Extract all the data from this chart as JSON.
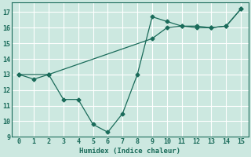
{
  "xlabel": "Humidex (Indice chaleur)",
  "background_color": "#cce8e0",
  "line_color": "#1a6b5a",
  "series1_x": [
    0,
    1,
    2,
    3,
    4,
    5,
    6,
    7,
    8,
    9,
    10,
    11,
    12,
    13,
    14,
    15
  ],
  "series1_y": [
    13.0,
    12.7,
    13.0,
    11.4,
    11.4,
    9.8,
    9.3,
    10.5,
    13.0,
    16.7,
    16.4,
    16.1,
    16.0,
    16.0,
    16.1,
    17.2
  ],
  "series2_x": [
    0,
    2,
    9,
    10,
    11,
    12,
    13,
    14,
    15
  ],
  "series2_y": [
    13.0,
    13.0,
    15.3,
    16.0,
    16.1,
    16.1,
    16.0,
    16.1,
    17.2
  ],
  "xlim": [
    -0.5,
    15.5
  ],
  "ylim": [
    9,
    17.6
  ],
  "yticks": [
    9,
    10,
    11,
    12,
    13,
    14,
    15,
    16,
    17
  ],
  "xticks": [
    0,
    1,
    2,
    3,
    4,
    5,
    6,
    7,
    8,
    9,
    10,
    11,
    12,
    13,
    14,
    15
  ],
  "grid_color": "#ffffff",
  "marker": "D",
  "markersize": 2.5,
  "linewidth": 0.9,
  "tick_fontsize": 6,
  "xlabel_fontsize": 6.5
}
